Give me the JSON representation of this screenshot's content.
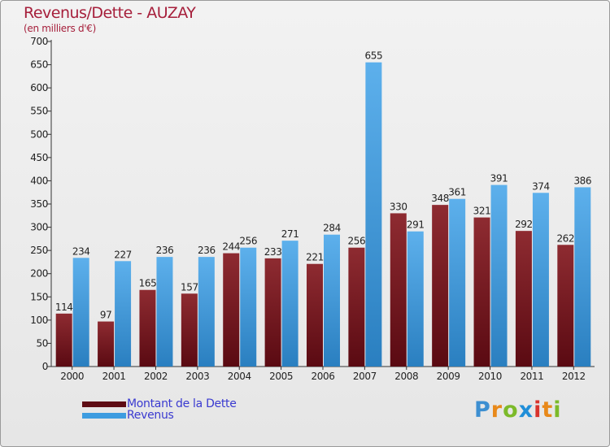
{
  "chart_data": {
    "type": "bar",
    "title": "Revenus/Dette - AUZAY",
    "subtitle": "(en milliers d'€)",
    "categories": [
      "2000",
      "2001",
      "2002",
      "2003",
      "2004",
      "2005",
      "2006",
      "2007",
      "2008",
      "2009",
      "2010",
      "2011",
      "2012"
    ],
    "series": [
      {
        "name": "Montant de la Dette",
        "color": "#7a1a22",
        "values": [
          114,
          97,
          165,
          157,
          244,
          233,
          221,
          256,
          330,
          348,
          321,
          292,
          262
        ]
      },
      {
        "name": "Revenus",
        "color": "#3d9ce0",
        "values": [
          234,
          227,
          236,
          236,
          256,
          271,
          284,
          655,
          291,
          361,
          391,
          374,
          386
        ]
      }
    ],
    "ylim": [
      0,
      700
    ],
    "yticks": [
      0,
      50,
      100,
      150,
      200,
      250,
      300,
      350,
      400,
      450,
      500,
      550,
      600,
      650,
      700
    ],
    "grid": false,
    "legend_position": "bottom-left"
  },
  "legend": {
    "debt_label": "Montant de la Dette",
    "revenue_label": "Revenus",
    "debt_color": "#6e0f19",
    "revenue_color": "#3d9ce0"
  },
  "logo": {
    "letters": [
      "P",
      "r",
      "o",
      "x",
      "i",
      "t",
      "i"
    ],
    "colors": [
      "#3d8fd1",
      "#e8891a",
      "#7cba2a",
      "#1f8ed8",
      "#d8332c",
      "#e8891a",
      "#7cba2a"
    ]
  }
}
